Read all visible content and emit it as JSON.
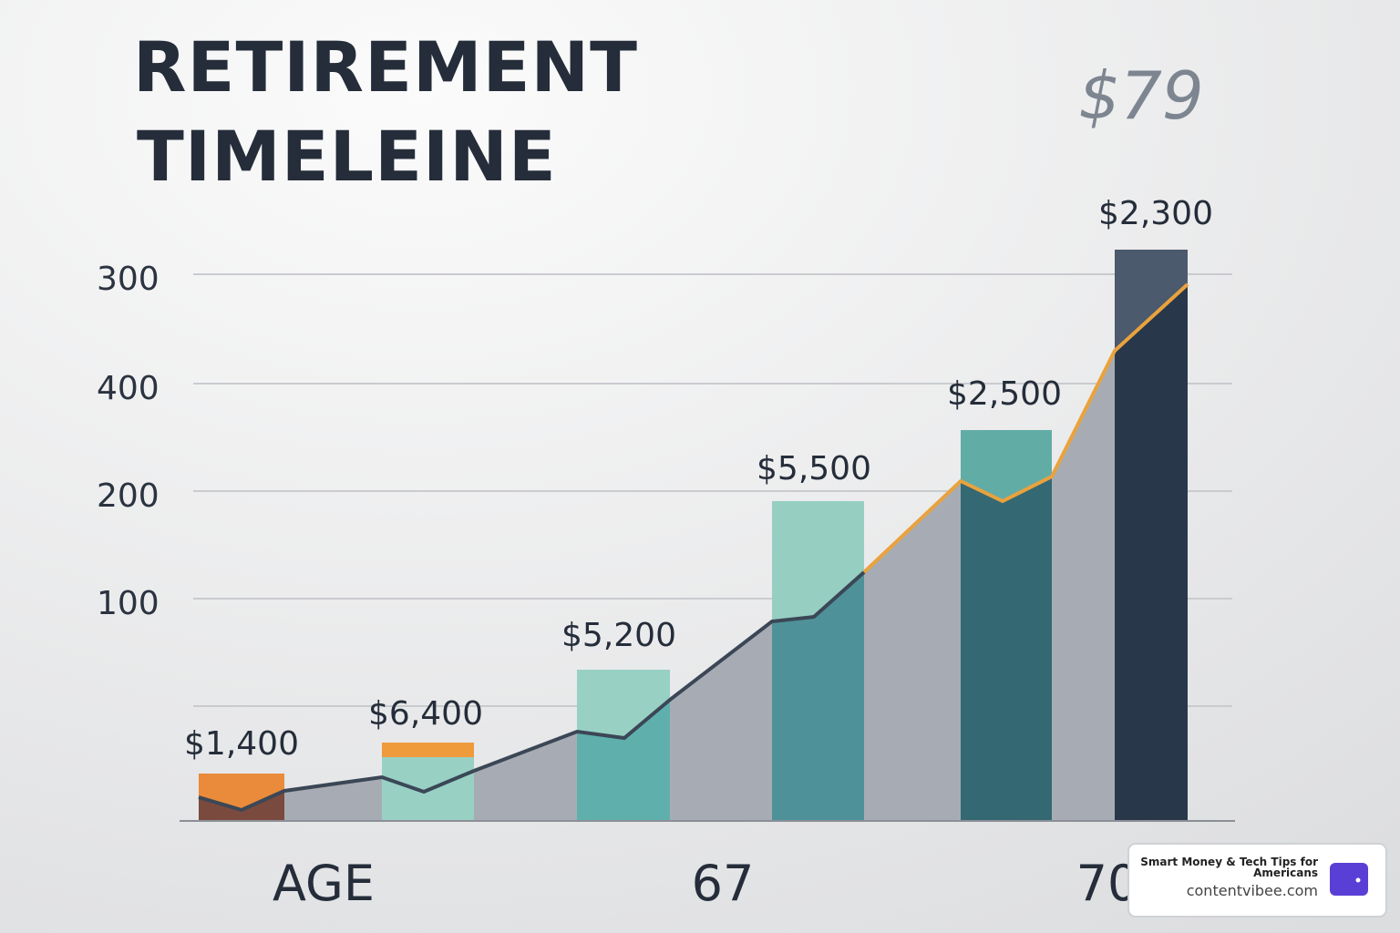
{
  "title": [
    "RETIREMENT",
    "TIMELEINE"
  ],
  "corner_text": "$79",
  "axis_labels": [
    "300",
    "400",
    "200",
    "100"
  ],
  "bar_labels": [
    "$1,400",
    "$6,400",
    "$5,200",
    "$5,500",
    "$2,500",
    "$2,300"
  ],
  "x_labels": [
    "AGE",
    "67",
    "70"
  ],
  "badge": {
    "title": "Smart Money & Tech Tips for Americans",
    "url": "contentvibee.com"
  }
}
